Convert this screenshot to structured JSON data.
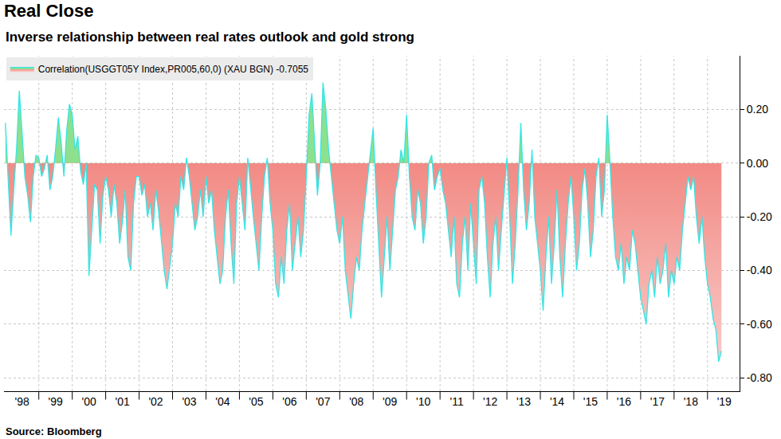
{
  "chart_data": {
    "type": "area",
    "title": "Real Close",
    "subtitle": "Inverse relationship between real rates outlook and gold strong",
    "annotations": [
      "Source: Bloomberg"
    ],
    "categories": [
      null,
      null,
      null,
      null,
      null,
      null,
      "'98",
      null,
      null,
      null,
      null,
      null,
      null,
      null,
      null,
      null,
      null,
      null,
      "'99",
      null,
      null,
      null,
      null,
      null,
      null,
      null,
      null,
      null,
      null,
      null,
      "'00",
      null,
      null,
      null,
      null,
      null,
      null,
      null,
      null,
      null,
      null,
      null,
      "'01",
      null,
      null,
      null,
      null,
      null,
      null,
      null,
      null,
      null,
      null,
      null,
      "'02",
      null,
      null,
      null,
      null,
      null,
      null,
      null,
      null,
      null,
      null,
      null,
      "'03",
      null,
      null,
      null,
      null,
      null,
      null,
      null,
      null,
      null,
      null,
      null,
      "'04",
      null,
      null,
      null,
      null,
      null,
      null,
      null,
      null,
      null,
      null,
      null,
      "'05",
      null,
      null,
      null,
      null,
      null,
      null,
      null,
      null,
      null,
      null,
      null,
      "'06",
      null,
      null,
      null,
      null,
      null,
      null,
      null,
      null,
      null,
      null,
      null,
      "'07",
      null,
      null,
      null,
      null,
      null,
      null,
      null,
      null,
      null,
      null,
      null,
      "'08",
      null,
      null,
      null,
      null,
      null,
      null,
      null,
      null,
      null,
      null,
      null,
      "'09",
      null,
      null,
      null,
      null,
      null,
      null,
      null,
      null,
      null,
      null,
      null,
      "'10",
      null,
      null,
      null,
      null,
      null,
      null,
      null,
      null,
      null,
      null,
      null,
      "'11",
      null,
      null,
      null,
      null,
      null,
      null,
      null,
      null,
      null,
      null,
      null,
      "'12",
      null,
      null,
      null,
      null,
      null,
      null,
      null,
      null,
      null,
      null,
      null,
      "'13",
      null,
      null,
      null,
      null,
      null,
      null,
      null,
      null,
      null,
      null,
      null,
      "'14",
      null,
      null,
      null,
      null,
      null,
      null,
      null,
      null,
      null,
      null,
      null,
      "'15",
      null,
      null,
      null,
      null,
      null,
      null,
      null,
      null,
      null,
      null,
      null,
      "'16",
      null,
      null,
      null,
      null,
      null,
      null,
      null,
      null,
      null,
      null,
      null,
      "'17",
      null,
      null,
      null,
      null,
      null,
      null,
      null,
      null,
      null,
      null,
      null,
      "'18",
      null,
      null,
      null,
      null,
      null,
      null,
      null,
      null,
      null,
      null,
      null,
      "'19",
      null,
      null,
      null,
      null,
      null
    ],
    "series": [
      {
        "name": "Correlation(USGGT05Y Index,PR005,60,0) (XAU BGN) -0.7055",
        "color": "#33e6e6",
        "values": [
          0.15,
          -0.05,
          -0.27,
          -0.1,
          0.05,
          0.27,
          0.1,
          -0.05,
          -0.12,
          -0.22,
          -0.05,
          0.03,
          0.02,
          -0.05,
          -0.02,
          0.03,
          -0.1,
          -0.05,
          0.05,
          0.17,
          0.08,
          -0.05,
          0.12,
          0.22,
          0.18,
          0.05,
          0.1,
          -0.03,
          -0.08,
          0.0,
          -0.42,
          -0.25,
          -0.08,
          -0.1,
          -0.3,
          -0.12,
          -0.05,
          -0.1,
          -0.2,
          -0.08,
          -0.15,
          -0.3,
          -0.22,
          -0.1,
          -0.35,
          -0.4,
          -0.15,
          -0.05,
          -0.05,
          -0.12,
          -0.08,
          -0.2,
          -0.15,
          -0.25,
          -0.1,
          -0.18,
          -0.3,
          -0.4,
          -0.47,
          -0.38,
          -0.3,
          -0.15,
          -0.2,
          -0.05,
          -0.1,
          0.02,
          -0.05,
          -0.15,
          -0.25,
          -0.2,
          -0.1,
          -0.2,
          -0.05,
          -0.15,
          -0.1,
          -0.25,
          -0.35,
          -0.45,
          -0.4,
          -0.2,
          -0.1,
          -0.3,
          -0.45,
          -0.15,
          -0.05,
          -0.15,
          -0.25,
          0.02,
          -0.1,
          -0.2,
          -0.3,
          -0.4,
          -0.2,
          -0.05,
          0.02,
          -0.15,
          -0.25,
          -0.45,
          -0.5,
          -0.35,
          -0.45,
          -0.25,
          -0.15,
          -0.4,
          -0.3,
          -0.2,
          -0.35,
          -0.25,
          -0.05,
          0.18,
          0.26,
          0.05,
          -0.12,
          0.0,
          0.3,
          0.2,
          0.05,
          -0.05,
          -0.15,
          -0.25,
          -0.3,
          -0.2,
          -0.4,
          -0.5,
          -0.58,
          -0.45,
          -0.35,
          -0.4,
          -0.25,
          -0.15,
          -0.05,
          0.05,
          0.13,
          -0.1,
          -0.3,
          -0.5,
          -0.35,
          -0.2,
          -0.4,
          -0.25,
          -0.1,
          -0.05,
          0.05,
          0.0,
          0.18,
          -0.05,
          -0.2,
          -0.25,
          -0.1,
          -0.15,
          -0.3,
          -0.2,
          0.0,
          0.03,
          -0.1,
          -0.05,
          -0.02,
          -0.1,
          -0.15,
          -0.25,
          -0.35,
          -0.2,
          -0.45,
          -0.5,
          -0.3,
          -0.2,
          -0.4,
          -0.15,
          -0.3,
          -0.45,
          -0.1,
          -0.05,
          -0.15,
          -0.35,
          -0.5,
          -0.3,
          -0.2,
          -0.4,
          -0.25,
          -0.1,
          0.02,
          -0.2,
          -0.45,
          -0.3,
          -0.1,
          0.15,
          -0.1,
          -0.25,
          -0.15,
          0.05,
          -0.2,
          -0.3,
          -0.4,
          -0.55,
          -0.35,
          -0.2,
          -0.45,
          -0.3,
          -0.1,
          -0.35,
          -0.5,
          -0.3,
          -0.15,
          -0.05,
          -0.2,
          -0.4,
          -0.3,
          -0.1,
          -0.02,
          -0.15,
          -0.35,
          -0.25,
          -0.05,
          0.02,
          -0.2,
          -0.1,
          0.18,
          0.0,
          -0.2,
          -0.35,
          -0.4,
          -0.3,
          -0.45,
          -0.35,
          -0.4,
          -0.25,
          -0.3,
          -0.4,
          -0.5,
          -0.55,
          -0.6,
          -0.45,
          -0.4,
          -0.5,
          -0.35,
          -0.45,
          -0.4,
          -0.3,
          -0.5,
          -0.4,
          -0.45,
          -0.35,
          -0.4,
          -0.25,
          -0.15,
          -0.05,
          -0.1,
          -0.05,
          -0.2,
          -0.3,
          -0.2,
          -0.35,
          -0.45,
          -0.5,
          -0.58,
          -0.62,
          -0.74,
          -0.7,
          null,
          null,
          null,
          null,
          null,
          null
        ]
      }
    ],
    "ylim": [
      -0.85,
      0.4
    ],
    "yticks": [
      {
        "value": 0.2,
        "label": "0.20"
      },
      {
        "value": 0,
        "label": "0.00"
      },
      {
        "value": -0.2,
        "label": "-0.20"
      },
      {
        "value": -0.4,
        "label": "-0.40"
      },
      {
        "value": -0.6,
        "label": "-0.60"
      },
      {
        "value": -0.8,
        "label": "-0.80"
      }
    ],
    "grid": true,
    "legend": "top left"
  }
}
